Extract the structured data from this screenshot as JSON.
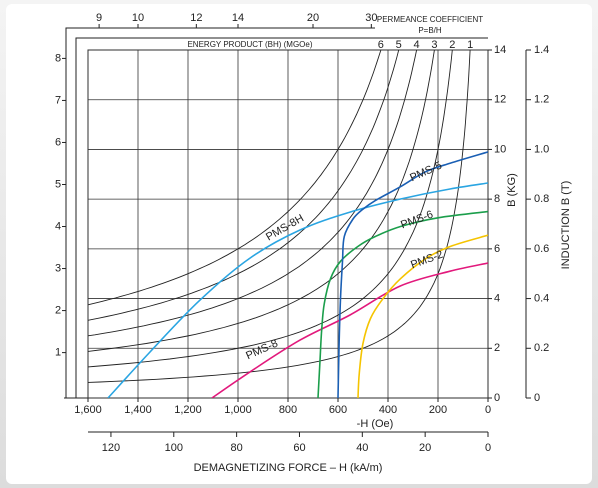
{
  "chart_data": {
    "type": "line",
    "x_label": "-H (Oe)",
    "x2_label": "DEMAGNETIZING FORCE – H (kA/m)",
    "y_label": "B (KG)",
    "y2_label": "INDUCTION B (T)",
    "xlim": [
      1600,
      0
    ],
    "xticks": [
      {
        "value": 1600,
        "label": "1,600"
      },
      {
        "value": 1400,
        "label": "1,400"
      },
      {
        "value": 1200,
        "label": "1,200"
      },
      {
        "value": 1000,
        "label": "1,000"
      },
      800,
      600,
      400,
      200,
      0
    ],
    "x2lim": [
      127.3,
      0
    ],
    "x2ticks": [
      120,
      100,
      80,
      60,
      40,
      20,
      0
    ],
    "ylim": [
      0,
      14
    ],
    "yticks": [
      0,
      2,
      4,
      6,
      8,
      10,
      12,
      14
    ],
    "y2lim": [
      0,
      1.4
    ],
    "y2ticks": [
      0,
      0.2,
      0.4,
      0.6,
      0.8,
      {
        "value": 1,
        "label": "1.0"
      },
      1.2,
      1.4
    ],
    "left_axis": {
      "ylim": [
        -0.08,
        8.2
      ],
      "yticks": [
        1,
        2,
        3,
        4,
        5,
        6,
        7,
        8
      ]
    },
    "grid": true,
    "energy_product": {
      "title": "ENERGY PRODUCT (BH) (MGOe)",
      "ticks": [
        6,
        5,
        4,
        3,
        2,
        1
      ]
    },
    "permeance": {
      "title": "PERMEANCE COEFFICIENT",
      "subtitle": "P=B/H",
      "ticks": [
        9,
        10,
        12,
        14,
        20,
        30
      ]
    },
    "series": [
      {
        "name": "PMS-8H",
        "color": "#2aa5e2",
        "x": [
          1520,
          1352,
          1152,
          952,
          752,
          552,
          352,
          152,
          0
        ],
        "values": [
          0,
          1.85,
          3.94,
          5.63,
          6.76,
          7.48,
          8.0,
          8.41,
          8.65
        ]
      },
      {
        "name": "PMS-8",
        "color": "#e2197c",
        "x": [
          1104,
          952,
          752,
          552,
          352,
          152,
          0
        ],
        "values": [
          0,
          1.05,
          2.33,
          3.34,
          4.5,
          5.1,
          5.43
        ]
      },
      {
        "name": "PMS-6",
        "color": "#1b9e4b",
        "x": [
          680,
          672,
          665,
          655,
          630,
          590,
          520,
          450,
          350,
          200,
          0
        ],
        "values": [
          0,
          1.5,
          2.8,
          3.8,
          4.8,
          5.5,
          6.1,
          6.5,
          6.9,
          7.25,
          7.5
        ]
      },
      {
        "name": "PMS-2",
        "color": "#f5c400",
        "x": [
          520,
          515,
          500,
          470,
          420,
          350,
          250,
          150,
          0
        ],
        "values": [
          0,
          1,
          2.2,
          3.2,
          4.0,
          4.8,
          5.6,
          6.1,
          6.55
        ]
      },
      {
        "name": "PMS-5",
        "color": "#1a5fb4",
        "x": [
          600,
          596,
          590,
          582,
          575,
          540,
          500,
          450,
          350,
          250,
          150,
          0
        ],
        "values": [
          0,
          2,
          4,
          5.5,
          6.5,
          7.2,
          7.6,
          7.95,
          8.5,
          9.1,
          9.45,
          9.9
        ]
      }
    ]
  }
}
